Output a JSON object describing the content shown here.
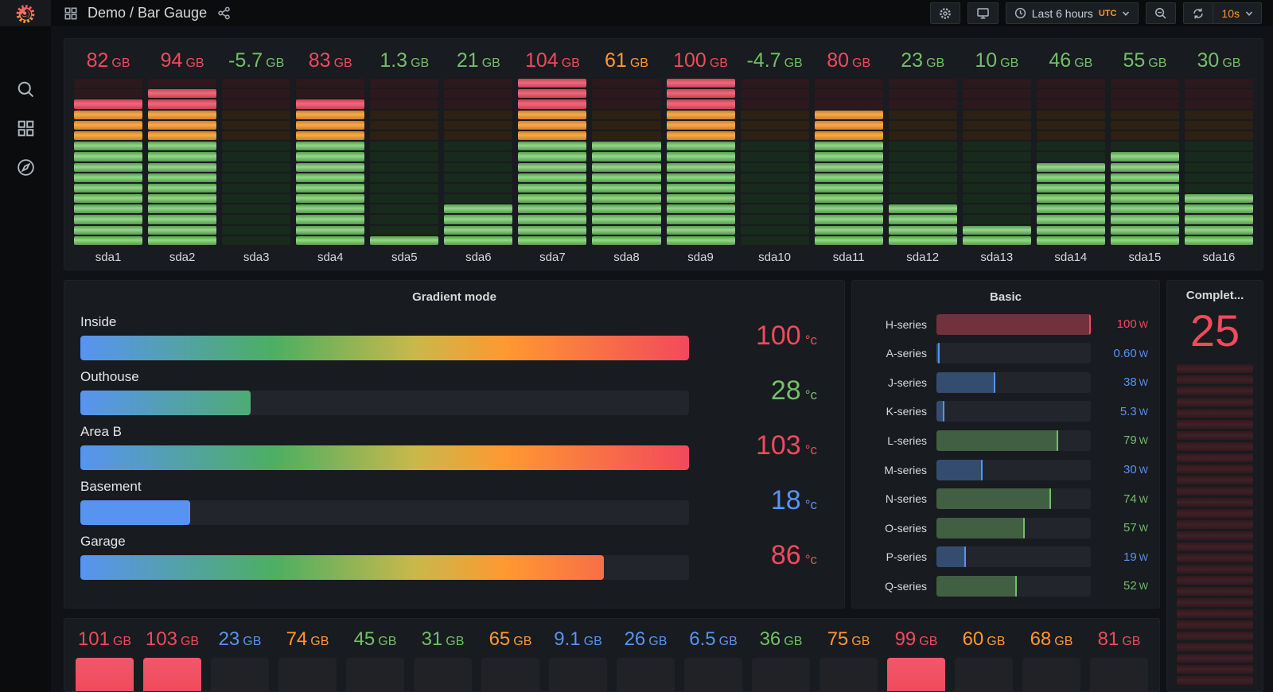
{
  "header": {
    "title": "Demo / Bar Gauge",
    "time_label": "Last 6 hours",
    "timezone": "UTC",
    "refresh_interval": "10s"
  },
  "colors": {
    "red": "#F2495C",
    "green": "#73BF69",
    "blue": "#5794F2",
    "orange": "#FF9830"
  },
  "chart_data": [
    {
      "id": "disk-retro-lcd",
      "type": "bar",
      "display": "retro-lcd-vertical",
      "unit": "GB",
      "total_cells": 16,
      "cell_zones_top_to_bottom": {
        "red": 3,
        "orange": 3,
        "green": 10
      },
      "categories": [
        "sda1",
        "sda2",
        "sda3",
        "sda4",
        "sda5",
        "sda6",
        "sda7",
        "sda8",
        "sda9",
        "sda10",
        "sda11",
        "sda12",
        "sda13",
        "sda14",
        "sda15",
        "sda16"
      ],
      "values": [
        82,
        94,
        -5.7,
        83,
        1.3,
        21,
        104,
        61,
        100,
        -4.7,
        80,
        23,
        10,
        46,
        55,
        30
      ],
      "value_colors": [
        "red",
        "red",
        "green",
        "red",
        "green",
        "green",
        "red",
        "orange",
        "red",
        "green",
        "red",
        "green",
        "green",
        "green",
        "green",
        "green"
      ],
      "lit_cells": [
        14,
        15,
        0,
        14,
        1,
        4,
        16,
        10,
        16,
        0,
        13,
        4,
        2,
        8,
        9,
        5
      ]
    },
    {
      "id": "gradient-mode",
      "type": "bar",
      "title": "Gradient mode",
      "display": "horizontal-gauge-gradient",
      "unit": "°c",
      "max": 100,
      "series": [
        {
          "name": "Inside",
          "value": 100,
          "color": "red",
          "pct": 100,
          "fill": "gradient"
        },
        {
          "name": "Outhouse",
          "value": 28,
          "color": "green",
          "pct": 28,
          "fill": "gradient"
        },
        {
          "name": "Area B",
          "value": 103,
          "color": "red",
          "pct": 100,
          "fill": "gradient"
        },
        {
          "name": "Basement",
          "value": 18,
          "color": "blue",
          "pct": 18,
          "fill": "solid"
        },
        {
          "name": "Garage",
          "value": 86,
          "color": "red",
          "pct": 86,
          "fill": "gradient"
        }
      ]
    },
    {
      "id": "basic",
      "type": "bar",
      "title": "Basic",
      "display": "horizontal-gauge-basic",
      "unit": "W",
      "max": 100,
      "series": [
        {
          "name": "H-series",
          "value": "100",
          "color": "red",
          "pct": 100
        },
        {
          "name": "A-series",
          "value": "0.60",
          "color": "blue",
          "pct": 1
        },
        {
          "name": "J-series",
          "value": "38",
          "color": "blue",
          "pct": 38
        },
        {
          "name": "K-series",
          "value": "5.3",
          "color": "blue",
          "pct": 5.3
        },
        {
          "name": "L-series",
          "value": "79",
          "color": "green",
          "pct": 79
        },
        {
          "name": "M-series",
          "value": "30",
          "color": "blue",
          "pct": 30
        },
        {
          "name": "N-series",
          "value": "74",
          "color": "green",
          "pct": 74
        },
        {
          "name": "O-series",
          "value": "57",
          "color": "green",
          "pct": 57
        },
        {
          "name": "P-series",
          "value": "19",
          "color": "blue",
          "pct": 19
        },
        {
          "name": "Q-series",
          "value": "52",
          "color": "green",
          "pct": 52
        }
      ]
    },
    {
      "id": "completion",
      "type": "gauge",
      "title": "Complet...",
      "display": "retro-lcd-vertical-single",
      "value": 25,
      "value_color": "red",
      "visible_unlit_cells": 30
    },
    {
      "id": "disk-bottom",
      "type": "bar",
      "display": "vertical-bars",
      "unit": "GB",
      "values": [
        101,
        103,
        23,
        74,
        45,
        31,
        65,
        9.1,
        26,
        6.5,
        36,
        75,
        99,
        60,
        68,
        81
      ],
      "value_colors": [
        "red",
        "red",
        "blue",
        "orange",
        "green",
        "green",
        "orange",
        "blue",
        "blue",
        "blue",
        "green",
        "orange",
        "red",
        "orange",
        "orange",
        "red"
      ],
      "fill_visible": [
        true,
        true,
        false,
        false,
        false,
        false,
        false,
        false,
        false,
        false,
        false,
        false,
        true,
        false,
        false,
        false
      ]
    }
  ]
}
